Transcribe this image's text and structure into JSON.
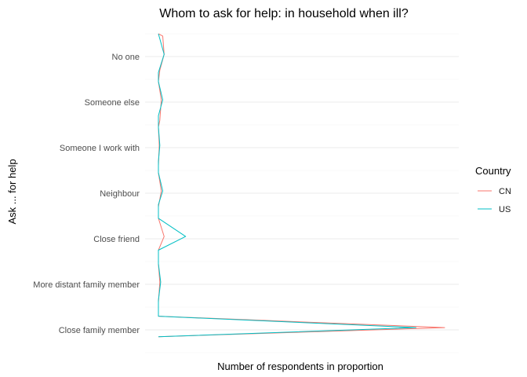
{
  "chart_data": {
    "type": "line",
    "title": "Whom to ask for help: in household when ill?",
    "xlabel": "Number of respondents in proportion",
    "ylabel": "Ask ... for help",
    "categories": [
      "No one",
      "Someone else",
      "Someone I work with",
      "Neighbour",
      "Close friend",
      "More distant family member",
      "Close family member"
    ],
    "xlim": [
      0,
      1
    ],
    "grid": true,
    "legend": {
      "title": "Country",
      "position": "right"
    },
    "series": [
      {
        "name": "CN",
        "color": "#F8766D",
        "points": [
          [
            0.0,
            6.5
          ],
          [
            0.015,
            6.45
          ],
          [
            0.02,
            6.05
          ],
          [
            0.005,
            5.7
          ],
          [
            0.0,
            5.45
          ],
          [
            0.01,
            5.05
          ],
          [
            0.005,
            4.6
          ],
          [
            0.0,
            4.45
          ],
          [
            0.003,
            4.05
          ],
          [
            0.0,
            3.6
          ],
          [
            0.0,
            3.45
          ],
          [
            0.01,
            3.05
          ],
          [
            0.0,
            2.7
          ],
          [
            0.0,
            2.45
          ],
          [
            0.02,
            2.05
          ],
          [
            0.0,
            1.75
          ],
          [
            0.0,
            1.45
          ],
          [
            0.005,
            1.05
          ],
          [
            0.0,
            0.6
          ],
          [
            0.0,
            0.3
          ],
          [
            1.0,
            0.05
          ],
          [
            0.0,
            -0.15
          ]
        ]
      },
      {
        "name": "US",
        "color": "#00BFC4",
        "points": [
          [
            0.0,
            6.5
          ],
          [
            0.02,
            6.05
          ],
          [
            0.0,
            5.65
          ],
          [
            0.0,
            5.45
          ],
          [
            0.015,
            5.05
          ],
          [
            0.0,
            4.7
          ],
          [
            0.0,
            4.45
          ],
          [
            0.005,
            4.05
          ],
          [
            0.0,
            3.7
          ],
          [
            0.0,
            3.45
          ],
          [
            0.015,
            3.05
          ],
          [
            0.0,
            2.75
          ],
          [
            0.0,
            2.45
          ],
          [
            0.095,
            2.05
          ],
          [
            0.0,
            1.75
          ],
          [
            0.0,
            1.45
          ],
          [
            0.008,
            1.05
          ],
          [
            0.0,
            0.65
          ],
          [
            0.0,
            0.3
          ],
          [
            0.9,
            0.05
          ],
          [
            0.0,
            -0.15
          ]
        ]
      }
    ]
  }
}
